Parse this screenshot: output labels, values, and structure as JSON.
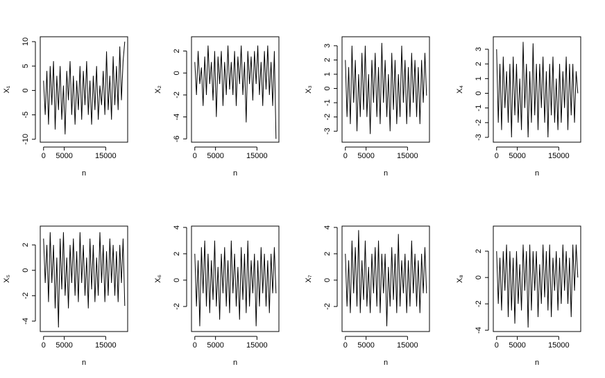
{
  "chart_data": [
    {
      "type": "line",
      "ylabel": "X₁",
      "xlabel": "n",
      "color": "#000000",
      "x": [
        0,
        400,
        800,
        1200,
        1600,
        2000,
        2400,
        2800,
        3200,
        3600,
        4000,
        4400,
        4800,
        5200,
        5600,
        6000,
        6400,
        6800,
        7200,
        7600,
        8000,
        8400,
        8800,
        9200,
        9600,
        10000,
        10400,
        10800,
        11200,
        11600,
        12000,
        12400,
        12800,
        13200,
        13600,
        14000,
        14400,
        14800,
        15200,
        15600,
        16000,
        16400,
        16800,
        17200,
        17600,
        18000,
        18400,
        18800,
        19200,
        19600
      ],
      "values": [
        2,
        -5,
        4,
        -7,
        5,
        -3,
        6,
        -8,
        3,
        -4,
        5,
        -6,
        1,
        -9,
        4,
        -2,
        6,
        -5,
        3,
        -7,
        2,
        -4,
        5,
        -6,
        4,
        -3,
        6,
        -5,
        2,
        -7,
        3,
        -4,
        5,
        -6,
        1,
        -3,
        4,
        -5,
        8,
        -4,
        3,
        -6,
        7,
        -3,
        5,
        -4,
        9,
        -2,
        6,
        10
      ],
      "xlim": [
        -800,
        20300
      ],
      "xticks": [
        0,
        5000,
        15000
      ],
      "ylim": [
        -10.6,
        11
      ],
      "yticks": [
        -10,
        -5,
        0,
        5,
        10
      ]
    },
    {
      "type": "line",
      "ylabel": "X₂",
      "xlabel": "n",
      "color": "#000000",
      "x": [
        0,
        400,
        800,
        1200,
        1600,
        2000,
        2400,
        2800,
        3200,
        3600,
        4000,
        4400,
        4800,
        5200,
        5600,
        6000,
        6400,
        6800,
        7200,
        7600,
        8000,
        8400,
        8800,
        9200,
        9600,
        10000,
        10400,
        10800,
        11200,
        11600,
        12000,
        12400,
        12800,
        13200,
        13600,
        14000,
        14400,
        14800,
        15200,
        15600,
        16000,
        16400,
        16800,
        17200,
        17600,
        18000,
        18400,
        18800,
        19200,
        19600
      ],
      "values": [
        1,
        -2,
        2,
        -1,
        0.5,
        -3,
        1.5,
        -2,
        2.5,
        -1,
        1,
        -2.5,
        2,
        -4,
        1.5,
        -1,
        2,
        -3,
        1,
        -2,
        2.5,
        -1.5,
        1,
        -2,
        2,
        -3,
        1.5,
        -1,
        2.5,
        -2,
        1,
        -4.5,
        2,
        -1,
        1.5,
        -2.5,
        2,
        -1,
        2.5,
        -2,
        1,
        -3,
        2,
        -1.5,
        2.5,
        -2,
        1,
        -3,
        2,
        -6
      ],
      "xlim": [
        -800,
        20300
      ],
      "xticks": [
        0,
        5000,
        15000
      ],
      "ylim": [
        -6.3,
        3.3
      ],
      "yticks": [
        -6,
        -4,
        -2,
        0,
        2
      ]
    },
    {
      "type": "line",
      "ylabel": "X₃",
      "xlabel": "n",
      "color": "#000000",
      "x": [
        0,
        400,
        800,
        1200,
        1600,
        2000,
        2400,
        2800,
        3200,
        3600,
        4000,
        4400,
        4800,
        5200,
        5600,
        6000,
        6400,
        6800,
        7200,
        7600,
        8000,
        8400,
        8800,
        9200,
        9600,
        10000,
        10400,
        10800,
        11200,
        11600,
        12000,
        12400,
        12800,
        13200,
        13600,
        14000,
        14400,
        14800,
        15200,
        15600,
        16000,
        16400,
        16800,
        17200,
        17600,
        18000,
        18400,
        18800,
        19200,
        19600
      ],
      "values": [
        2,
        -2,
        1.5,
        -2.5,
        3,
        -1,
        2,
        -3,
        1,
        -2,
        2.5,
        -1.5,
        3,
        -2,
        1,
        -3.2,
        2,
        -1,
        2.5,
        -2,
        1.5,
        -2.5,
        3.2,
        -1,
        2,
        -2,
        1,
        -3,
        2.5,
        -1.5,
        2,
        -2.5,
        1,
        -2,
        3,
        -1,
        2,
        -2.5,
        1.5,
        -2,
        2.5,
        -1,
        2,
        -2,
        1.5,
        -2.5,
        2,
        -1,
        2.5,
        -0.5
      ],
      "xlim": [
        -800,
        20300
      ],
      "xticks": [
        0,
        5000,
        15000
      ],
      "ylim": [
        -3.77,
        3.63
      ],
      "yticks": [
        -3,
        -2,
        -1,
        0,
        1,
        2,
        3
      ]
    },
    {
      "type": "line",
      "ylabel": "X₄",
      "xlabel": "n",
      "color": "#000000",
      "x": [
        0,
        400,
        800,
        1200,
        1600,
        2000,
        2400,
        2800,
        3200,
        3600,
        4000,
        4400,
        4800,
        5200,
        5600,
        6000,
        6400,
        6800,
        7200,
        7600,
        8000,
        8400,
        8800,
        9200,
        9600,
        10000,
        10400,
        10800,
        11200,
        11600,
        12000,
        12400,
        12800,
        13200,
        13600,
        14000,
        14400,
        14800,
        15200,
        15600,
        16000,
        16400,
        16800,
        17200,
        17600,
        18000,
        18400,
        18800,
        19200,
        19600
      ],
      "values": [
        3,
        -2,
        2,
        -2.5,
        2.5,
        -1,
        1.5,
        -2,
        2,
        -3,
        2.5,
        -1.5,
        2,
        -2,
        1,
        -2.5,
        3.5,
        -1,
        2,
        -3,
        1.5,
        -2,
        3.4,
        -1.5,
        2,
        -2.5,
        2,
        -1,
        2.5,
        -2,
        1.5,
        -3,
        2,
        -1.5,
        2.5,
        -2,
        1,
        -2.5,
        2,
        -2,
        1.5,
        -1,
        2.5,
        -2.5,
        2,
        -1.5,
        2,
        -2,
        1.5,
        0
      ],
      "xlim": [
        -800,
        20300
      ],
      "xticks": [
        0,
        5000,
        15000
      ],
      "ylim": [
        -3.33,
        3.85
      ],
      "yticks": [
        -3,
        -2,
        -1,
        0,
        1,
        2,
        3
      ]
    },
    {
      "type": "line",
      "ylabel": "X₅",
      "xlabel": "n",
      "color": "#000000",
      "x": [
        0,
        400,
        800,
        1200,
        1600,
        2000,
        2400,
        2800,
        3200,
        3600,
        4000,
        4400,
        4800,
        5200,
        5600,
        6000,
        6400,
        6800,
        7200,
        7600,
        8000,
        8400,
        8800,
        9200,
        9600,
        10000,
        10400,
        10800,
        11200,
        11600,
        12000,
        12400,
        12800,
        13200,
        13600,
        14000,
        14400,
        14800,
        15200,
        15600,
        16000,
        16400,
        16800,
        17200,
        17600,
        18000,
        18400,
        18800,
        19200,
        19600
      ],
      "values": [
        2.5,
        -1,
        2,
        -2.5,
        3,
        -1,
        2,
        -3,
        1,
        -4.5,
        2.5,
        -1.5,
        3,
        -2,
        1,
        -3,
        2,
        -1,
        2.5,
        -2,
        1.5,
        -2.5,
        3,
        -1,
        2,
        -2,
        1,
        -3,
        2.5,
        -1.5,
        2,
        -2.5,
        1,
        -2,
        3,
        -1,
        2,
        -2.5,
        1.5,
        -2,
        2.5,
        -1,
        2,
        -2,
        1.5,
        -2.5,
        2,
        -1,
        2.5,
        -2.8
      ],
      "xlim": [
        -800,
        20300
      ],
      "xticks": [
        0,
        5000,
        15000
      ],
      "ylim": [
        -4.82,
        3.48
      ],
      "yticks": [
        -4,
        -2,
        0,
        2
      ]
    },
    {
      "type": "line",
      "ylabel": "X₆",
      "xlabel": "n",
      "color": "#000000",
      "x": [
        0,
        400,
        800,
        1200,
        1600,
        2000,
        2400,
        2800,
        3200,
        3600,
        4000,
        4400,
        4800,
        5200,
        5600,
        6000,
        6400,
        6800,
        7200,
        7600,
        8000,
        8400,
        8800,
        9200,
        9600,
        10000,
        10400,
        10800,
        11200,
        11600,
        12000,
        12400,
        12800,
        13200,
        13600,
        14000,
        14400,
        14800,
        15200,
        15600,
        16000,
        16400,
        16800,
        17200,
        17600,
        18000,
        18400,
        18800,
        19200,
        19600
      ],
      "values": [
        2,
        -2,
        1.5,
        -3.5,
        2.5,
        -1,
        3,
        -2,
        2,
        -2.5,
        1.5,
        -1.5,
        3,
        -2,
        1,
        -3,
        2,
        -1,
        2.5,
        -2,
        1.5,
        -2.5,
        3,
        -1,
        2,
        -2,
        1,
        -3,
        2.5,
        -1.5,
        2,
        -2.5,
        3,
        -2,
        1.5,
        -1,
        2,
        -3.5,
        1.5,
        -2,
        2.5,
        -1,
        2,
        -2,
        1.5,
        -2.5,
        2,
        -1,
        2.5,
        -1
      ],
      "xlim": [
        -800,
        20300
      ],
      "xticks": [
        0,
        5000,
        15000
      ],
      "ylim": [
        -3.9,
        4.1
      ],
      "yticks": [
        -2,
        0,
        2,
        4
      ]
    },
    {
      "type": "line",
      "ylabel": "X₇",
      "xlabel": "n",
      "color": "#000000",
      "x": [
        0,
        400,
        800,
        1200,
        1600,
        2000,
        2400,
        2800,
        3200,
        3600,
        4000,
        4400,
        4800,
        5200,
        5600,
        6000,
        6400,
        6800,
        7200,
        7600,
        8000,
        8400,
        8800,
        9200,
        9600,
        10000,
        10400,
        10800,
        11200,
        11600,
        12000,
        12400,
        12800,
        13200,
        13600,
        14000,
        14400,
        14800,
        15200,
        15600,
        16000,
        16400,
        16800,
        17200,
        17600,
        18000,
        18400,
        18800,
        19200,
        19600
      ],
      "values": [
        2,
        -2,
        1.5,
        -2.5,
        3,
        -1,
        2.5,
        -2,
        3.8,
        -2.5,
        1.5,
        -1.5,
        3,
        -2,
        1,
        -2.5,
        2,
        -1,
        2.5,
        -2,
        3,
        -2.5,
        2,
        -1,
        2,
        -3.5,
        1,
        -2,
        2.5,
        -1.5,
        2,
        -2.5,
        3.5,
        -2,
        1.5,
        -1,
        2,
        -2.5,
        1.5,
        -2,
        3,
        -1,
        2,
        -2,
        1.5,
        -2.5,
        2,
        -1,
        2.5,
        -1
      ],
      "xlim": [
        -800,
        20300
      ],
      "xticks": [
        0,
        5000,
        15000
      ],
      "ylim": [
        -3.9,
        4.1
      ],
      "yticks": [
        -2,
        0,
        2,
        4
      ]
    },
    {
      "type": "line",
      "ylabel": "X₈",
      "xlabel": "n",
      "color": "#000000",
      "x": [
        0,
        400,
        800,
        1200,
        1600,
        2000,
        2400,
        2800,
        3200,
        3600,
        4000,
        4400,
        4800,
        5200,
        5600,
        6000,
        6400,
        6800,
        7200,
        7600,
        8000,
        8400,
        8800,
        9200,
        9600,
        10000,
        10400,
        10800,
        11200,
        11600,
        12000,
        12400,
        12800,
        13200,
        13600,
        14000,
        14400,
        14800,
        15200,
        15600,
        16000,
        16400,
        16800,
        17200,
        17600,
        18000,
        18400,
        18800,
        19200,
        19600
      ],
      "values": [
        2,
        -2,
        1.5,
        -2.5,
        2,
        -1,
        2.5,
        -3,
        2,
        -2.5,
        1.5,
        -3.5,
        2,
        -2,
        1,
        -2.5,
        2.5,
        -1,
        2,
        -3.8,
        2.5,
        -2.5,
        2,
        -1,
        2,
        -3,
        1,
        -2,
        2.5,
        -1.5,
        2,
        -2.5,
        2.5,
        -3,
        1.5,
        -1,
        2,
        -2.5,
        1.5,
        -2,
        2.5,
        -1,
        2,
        -2,
        1.5,
        -3,
        2.5,
        -1,
        2.5,
        0
      ],
      "xlim": [
        -800,
        20300
      ],
      "xticks": [
        0,
        5000,
        15000
      ],
      "ylim": [
        -4.1,
        3.9
      ],
      "yticks": [
        -4,
        -2,
        0,
        2
      ]
    }
  ]
}
